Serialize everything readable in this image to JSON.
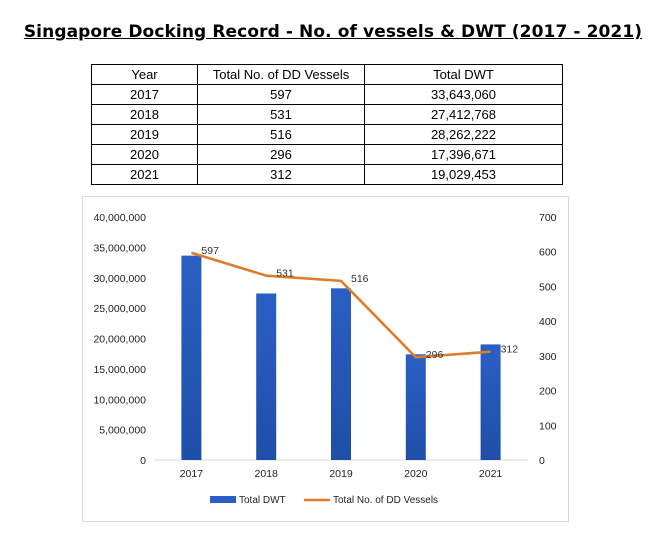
{
  "title": "Singapore Docking Record - No. of vessels & DWT (2017 - 2021)",
  "table": {
    "headers": [
      "Year",
      "Total No. of DD Vessels",
      "Total DWT"
    ],
    "rows": [
      [
        "2017",
        "597",
        "33,643,060"
      ],
      [
        "2018",
        "531",
        "27,412,768"
      ],
      [
        "2019",
        "516",
        "28,262,222"
      ],
      [
        "2020",
        "296",
        "17,396,671"
      ],
      [
        "2021",
        "312",
        "19,029,453"
      ]
    ]
  },
  "chart_data": {
    "type": "bar",
    "categories": [
      "2017",
      "2018",
      "2019",
      "2020",
      "2021"
    ],
    "series": [
      {
        "name": "Total DWT",
        "type": "bar",
        "axis": "left",
        "values": [
          33643060,
          27412768,
          28262222,
          17396671,
          19029453
        ],
        "color": "#2e5fbf"
      },
      {
        "name": "Total No. of DD Vessels",
        "type": "line",
        "axis": "right",
        "values": [
          597,
          531,
          516,
          296,
          312
        ],
        "color": "#e07b2a"
      }
    ],
    "line_labels": [
      "597",
      "531",
      "516",
      "296",
      "312"
    ],
    "y_left": {
      "min": 0,
      "max": 40000000,
      "ticks": [
        "0",
        "5,000,000",
        "10,000,000",
        "15,000,000",
        "20,000,000",
        "25,000,000",
        "30,000,000",
        "35,000,000",
        "40,000,000"
      ]
    },
    "y_right": {
      "min": 0,
      "max": 700,
      "ticks": [
        "0",
        "100",
        "200",
        "300",
        "400",
        "500",
        "600",
        "700"
      ]
    },
    "legend": [
      "Total DWT",
      "Total No. of DD Vessels"
    ],
    "legend_position": "bottom",
    "grid": false
  }
}
